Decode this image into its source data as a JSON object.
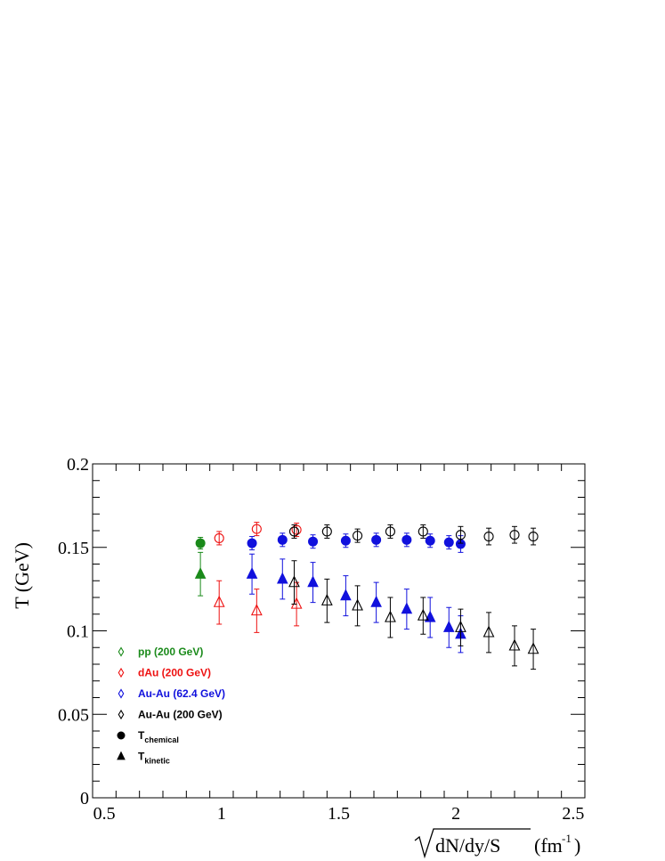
{
  "chart_data": {
    "type": "scatter",
    "title": "",
    "xlabel": "√dN/dy/S (fm⁻¹)",
    "xlabel_parts": {
      "root_text": "dN/dy/S",
      "unit_text": "(fm",
      "unit_exp": "-1",
      "unit_close": ")"
    },
    "ylabel": "T (GeV)",
    "xlim": [
      0.45,
      2.55
    ],
    "ylim": [
      0,
      0.2
    ],
    "x_ticks": [
      {
        "value": 0.5,
        "label": "0.5"
      },
      {
        "value": 1.0,
        "label": "1"
      },
      {
        "value": 1.5,
        "label": "1.5"
      },
      {
        "value": 2.0,
        "label": "2"
      },
      {
        "value": 2.5,
        "label": "2.5"
      }
    ],
    "y_ticks": [
      {
        "value": 0.0,
        "label": "0"
      },
      {
        "value": 0.05,
        "label": "0.05"
      },
      {
        "value": 0.1,
        "label": "0.1"
      },
      {
        "value": 0.15,
        "label": "0.15"
      },
      {
        "value": 0.2,
        "label": "0.2"
      }
    ],
    "grid": false,
    "legend_position": "bottom-left",
    "legend": [
      {
        "label": "pp (200 GeV)",
        "marker": "diamond-open",
        "color": "#1a8a1a"
      },
      {
        "label": "dAu (200 GeV)",
        "marker": "diamond-open",
        "color": "#ee1111"
      },
      {
        "label": "Au-Au (62.4 GeV)",
        "marker": "diamond-open",
        "color": "#1111dd"
      },
      {
        "label": "Au-Au (200 GeV)",
        "marker": "diamond-open",
        "color": "#000000"
      },
      {
        "label": "T",
        "sub": "chemical",
        "marker": "circle-filled",
        "color": "#000000"
      },
      {
        "label": "T",
        "sub": "kinetic",
        "marker": "triangle-filled",
        "color": "#000000"
      }
    ],
    "series": [
      {
        "system": "pp (200 GeV)",
        "quantity": "chemical",
        "marker": "circle-filled",
        "color": "#1a8a1a",
        "points": [
          {
            "x": 0.91,
            "y": 0.1525,
            "err": 0.0035
          }
        ]
      },
      {
        "system": "pp (200 GeV)",
        "quantity": "kinetic",
        "marker": "triangle-filled",
        "color": "#1a8a1a",
        "points": [
          {
            "x": 0.91,
            "y": 0.134,
            "err": 0.013
          }
        ]
      },
      {
        "system": "dAu (200 GeV)",
        "quantity": "chemical",
        "marker": "circle-open",
        "color": "#ee1111",
        "points": [
          {
            "x": 0.99,
            "y": 0.1555,
            "err": 0.004
          },
          {
            "x": 1.15,
            "y": 0.161,
            "err": 0.004
          },
          {
            "x": 1.32,
            "y": 0.1605,
            "err": 0.004
          }
        ]
      },
      {
        "system": "dAu (200 GeV)",
        "quantity": "kinetic",
        "marker": "triangle-open",
        "color": "#ee1111",
        "points": [
          {
            "x": 0.99,
            "y": 0.117,
            "err": 0.013
          },
          {
            "x": 1.15,
            "y": 0.112,
            "err": 0.013
          },
          {
            "x": 1.32,
            "y": 0.116,
            "err": 0.013
          }
        ]
      },
      {
        "system": "Au-Au (62.4 GeV)",
        "quantity": "chemical",
        "marker": "circle-filled",
        "color": "#1111dd",
        "points": [
          {
            "x": 1.13,
            "y": 0.1525,
            "err": 0.004
          },
          {
            "x": 1.26,
            "y": 0.1545,
            "err": 0.004
          },
          {
            "x": 1.39,
            "y": 0.1535,
            "err": 0.004
          },
          {
            "x": 1.53,
            "y": 0.154,
            "err": 0.004
          },
          {
            "x": 1.66,
            "y": 0.1545,
            "err": 0.004
          },
          {
            "x": 1.79,
            "y": 0.1545,
            "err": 0.004
          },
          {
            "x": 1.89,
            "y": 0.154,
            "err": 0.004
          },
          {
            "x": 1.97,
            "y": 0.153,
            "err": 0.004
          },
          {
            "x": 2.02,
            "y": 0.152,
            "err": 0.005
          }
        ]
      },
      {
        "system": "Au-Au (62.4 GeV)",
        "quantity": "kinetic",
        "marker": "triangle-filled",
        "color": "#1111dd",
        "points": [
          {
            "x": 1.13,
            "y": 0.134,
            "err": 0.012
          },
          {
            "x": 1.26,
            "y": 0.131,
            "err": 0.012
          },
          {
            "x": 1.39,
            "y": 0.129,
            "err": 0.012
          },
          {
            "x": 1.53,
            "y": 0.121,
            "err": 0.012
          },
          {
            "x": 1.66,
            "y": 0.117,
            "err": 0.012
          },
          {
            "x": 1.79,
            "y": 0.113,
            "err": 0.012
          },
          {
            "x": 1.89,
            "y": 0.108,
            "err": 0.012
          },
          {
            "x": 1.97,
            "y": 0.102,
            "err": 0.012
          },
          {
            "x": 2.02,
            "y": 0.098,
            "err": 0.011
          }
        ]
      },
      {
        "system": "Au-Au (200 GeV)",
        "quantity": "chemical",
        "marker": "circle-open",
        "color": "#000000",
        "points": [
          {
            "x": 1.31,
            "y": 0.1595,
            "err": 0.004
          },
          {
            "x": 1.45,
            "y": 0.1595,
            "err": 0.004
          },
          {
            "x": 1.58,
            "y": 0.157,
            "err": 0.004
          },
          {
            "x": 1.72,
            "y": 0.1595,
            "err": 0.004
          },
          {
            "x": 1.86,
            "y": 0.1595,
            "err": 0.004
          },
          {
            "x": 2.02,
            "y": 0.1575,
            "err": 0.005
          },
          {
            "x": 2.14,
            "y": 0.1565,
            "err": 0.005
          },
          {
            "x": 2.25,
            "y": 0.1575,
            "err": 0.005
          },
          {
            "x": 2.33,
            "y": 0.1565,
            "err": 0.005
          }
        ]
      },
      {
        "system": "Au-Au (200 GeV)",
        "quantity": "kinetic",
        "marker": "triangle-open",
        "color": "#000000",
        "points": [
          {
            "x": 1.31,
            "y": 0.129,
            "err": 0.013
          },
          {
            "x": 1.45,
            "y": 0.118,
            "err": 0.013
          },
          {
            "x": 1.58,
            "y": 0.115,
            "err": 0.012
          },
          {
            "x": 1.72,
            "y": 0.108,
            "err": 0.012
          },
          {
            "x": 1.86,
            "y": 0.109,
            "err": 0.011
          },
          {
            "x": 2.02,
            "y": 0.102,
            "err": 0.011
          },
          {
            "x": 2.14,
            "y": 0.099,
            "err": 0.012
          },
          {
            "x": 2.25,
            "y": 0.091,
            "err": 0.012
          },
          {
            "x": 2.33,
            "y": 0.089,
            "err": 0.012
          }
        ]
      }
    ]
  }
}
